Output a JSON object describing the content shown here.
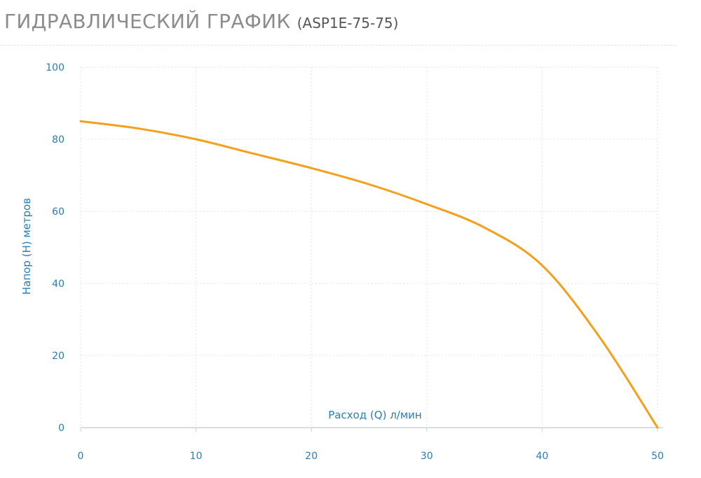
{
  "header": {
    "title": "ГИДРАВЛИЧЕСКИЙ ГРАФИК",
    "model": "(ASP1E-75-75)"
  },
  "colors": {
    "curve": "#f5a01a",
    "axis_text": "#2a7db0",
    "grid": "#e3e3e3",
    "axis_line": "#c8d3dc",
    "title": "#8c8c8c"
  },
  "chart_data": {
    "type": "line",
    "xlabel": "Расход (Q) л/мин",
    "ylabel": "Напор (H) метров",
    "xlim": [
      0,
      50
    ],
    "ylim": [
      0,
      100
    ],
    "xticks": [
      0,
      10,
      20,
      30,
      40,
      50
    ],
    "yticks": [
      0,
      20,
      40,
      60,
      80,
      100
    ],
    "grid": true,
    "series": [
      {
        "x": [
          0,
          5,
          10,
          15,
          20,
          25,
          30,
          35,
          40,
          45,
          50
        ],
        "y": [
          85,
          83,
          80,
          76,
          72,
          67.5,
          62,
          55.5,
          45,
          25,
          0
        ]
      }
    ]
  }
}
